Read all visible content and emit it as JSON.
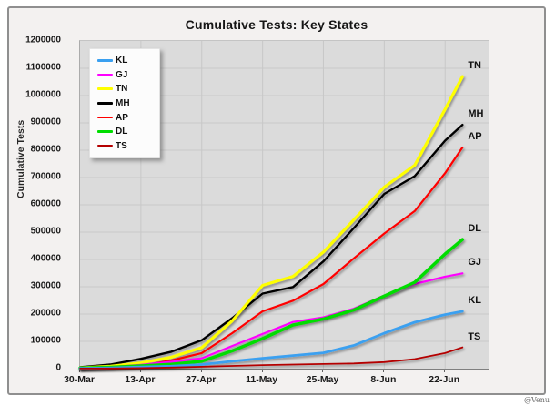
{
  "window": {
    "title": "Cumulative Tests: Key States"
  },
  "watermark": "@Venu",
  "chart_data": {
    "type": "line",
    "title": "Cumulative Tests: Key States",
    "xlabel": "",
    "ylabel": "Cumulative Tests",
    "ylim": [
      0,
      1200000
    ],
    "ytick_step": 100000,
    "grid": true,
    "plot_background": "#DBDBDB",
    "gridline_color": "#C8C8C8",
    "legend_position": "upper-left-inside",
    "x_tick_labels": [
      "30-Mar",
      "13-Apr",
      "27-Apr",
      "11-May",
      "25-May",
      "8-Jun",
      "22-Jun"
    ],
    "x_tick_interval_days": 14,
    "x_span_days": 94,
    "x_days": [
      0,
      7,
      14,
      21,
      28,
      35,
      42,
      49,
      56,
      63,
      70,
      77,
      84,
      88
    ],
    "x_dates": [
      "30-Mar",
      "6-Apr",
      "13-Apr",
      "20-Apr",
      "27-Apr",
      "4-May",
      "11-May",
      "18-May",
      "25-May",
      "1-Jun",
      "8-Jun",
      "15-Jun",
      "22-Jun",
      "26-Jun"
    ],
    "series": [
      {
        "name": "KL",
        "color": "#3AA0F0",
        "width": 2.8,
        "values": [
          1000,
          3000,
          6000,
          9000,
          15000,
          27000,
          38000,
          48000,
          58000,
          85000,
          130000,
          170000,
          198000,
          210000
        ]
      },
      {
        "name": "GJ",
        "color": "#FF00FF",
        "width": 2.2,
        "values": [
          1000,
          6000,
          14000,
          25000,
          38000,
          83000,
          127000,
          171000,
          188000,
          220000,
          268000,
          310000,
          337000,
          349000
        ]
      },
      {
        "name": "TN",
        "color": "#FFFF00",
        "width": 3.2,
        "values": [
          3000,
          9000,
          21000,
          42000,
          77000,
          175000,
          305000,
          338000,
          427000,
          545000,
          665000,
          745000,
          950000,
          1070000
        ]
      },
      {
        "name": "MH",
        "color": "#000000",
        "width": 2.4,
        "values": [
          5000,
          15000,
          36000,
          62000,
          104000,
          185000,
          275000,
          299000,
          393000,
          515000,
          640000,
          705000,
          835000,
          893000
        ]
      },
      {
        "name": "AP",
        "color": "#FF0000",
        "width": 2.2,
        "values": [
          1000,
          4000,
          10000,
          30000,
          57000,
          130000,
          210000,
          249000,
          310000,
          404000,
          495000,
          577000,
          716000,
          810000
        ]
      },
      {
        "name": "DL",
        "color": "#00DD00",
        "width": 3.5,
        "values": [
          2000,
          5000,
          10000,
          16000,
          27000,
          65000,
          110000,
          160000,
          182000,
          215000,
          266000,
          316000,
          420000,
          473000
        ]
      },
      {
        "name": "TS",
        "color": "#B40000",
        "width": 1.8,
        "values": [
          300,
          800,
          2000,
          4000,
          7000,
          10000,
          13000,
          15000,
          17000,
          19000,
          24000,
          35000,
          57000,
          78000
        ]
      }
    ],
    "draw_order": [
      "MH",
      "TN",
      "AP",
      "GJ",
      "DL",
      "KL",
      "TS"
    ]
  }
}
